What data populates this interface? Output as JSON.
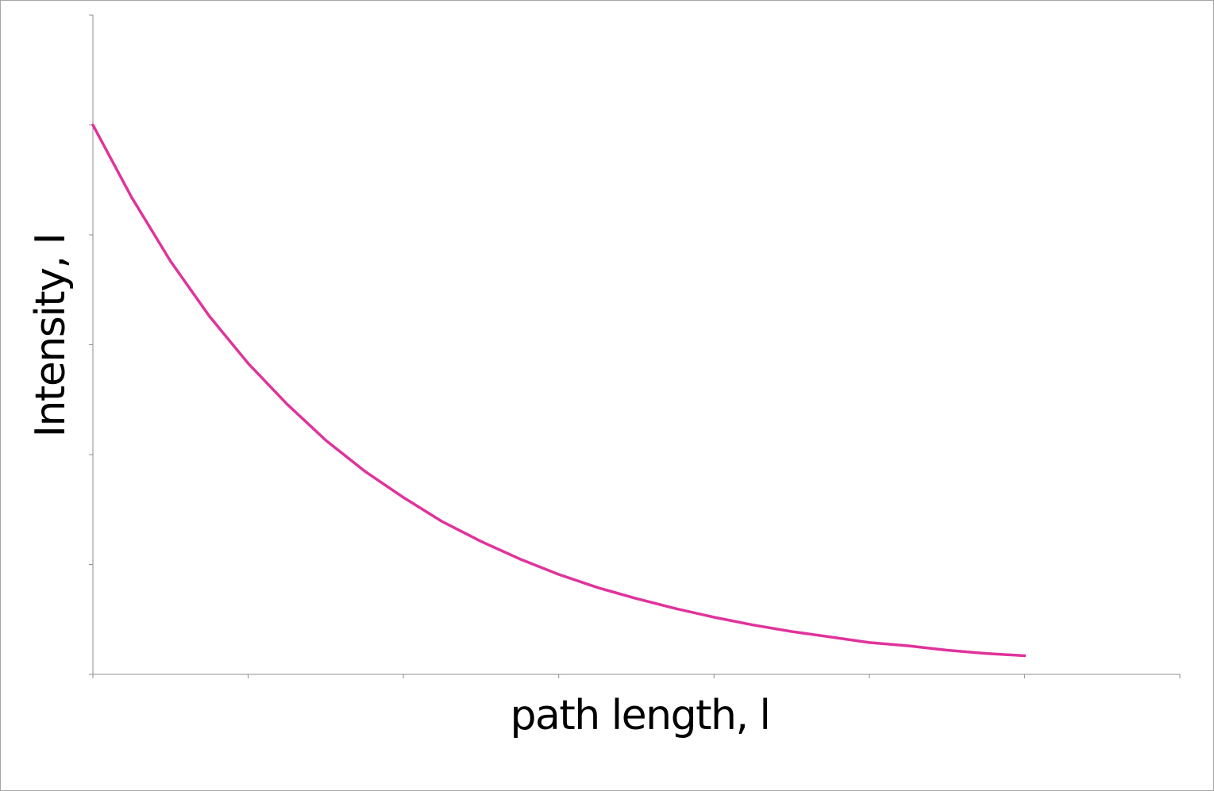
{
  "chart_data": {
    "type": "line",
    "title": "",
    "xlabel": "path length, l",
    "ylabel": "Intensity, I",
    "xlim": [
      0,
      7
    ],
    "ylim": [
      0,
      6
    ],
    "x_tick_count": 8,
    "y_tick_count": 7,
    "grid": false,
    "legend": "none",
    "x_tick_labels": [],
    "y_tick_labels": [],
    "series": [
      {
        "x": [
          0,
          0.25,
          0.5,
          0.75,
          1,
          1.25,
          1.5,
          1.75,
          2,
          2.25,
          2.5,
          2.75,
          3,
          3.25,
          3.5,
          3.75,
          4,
          4.25,
          4.5,
          4.75,
          5,
          5.25,
          5.5,
          5.75,
          6
        ],
        "y": [
          5.0,
          4.34,
          3.76,
          3.26,
          2.83,
          2.46,
          2.13,
          1.85,
          1.61,
          1.39,
          1.21,
          1.05,
          0.91,
          0.79,
          0.69,
          0.6,
          0.52,
          0.45,
          0.39,
          0.34,
          0.29,
          0.26,
          0.22,
          0.19,
          0.17
        ],
        "color": "#e0339b"
      }
    ]
  }
}
